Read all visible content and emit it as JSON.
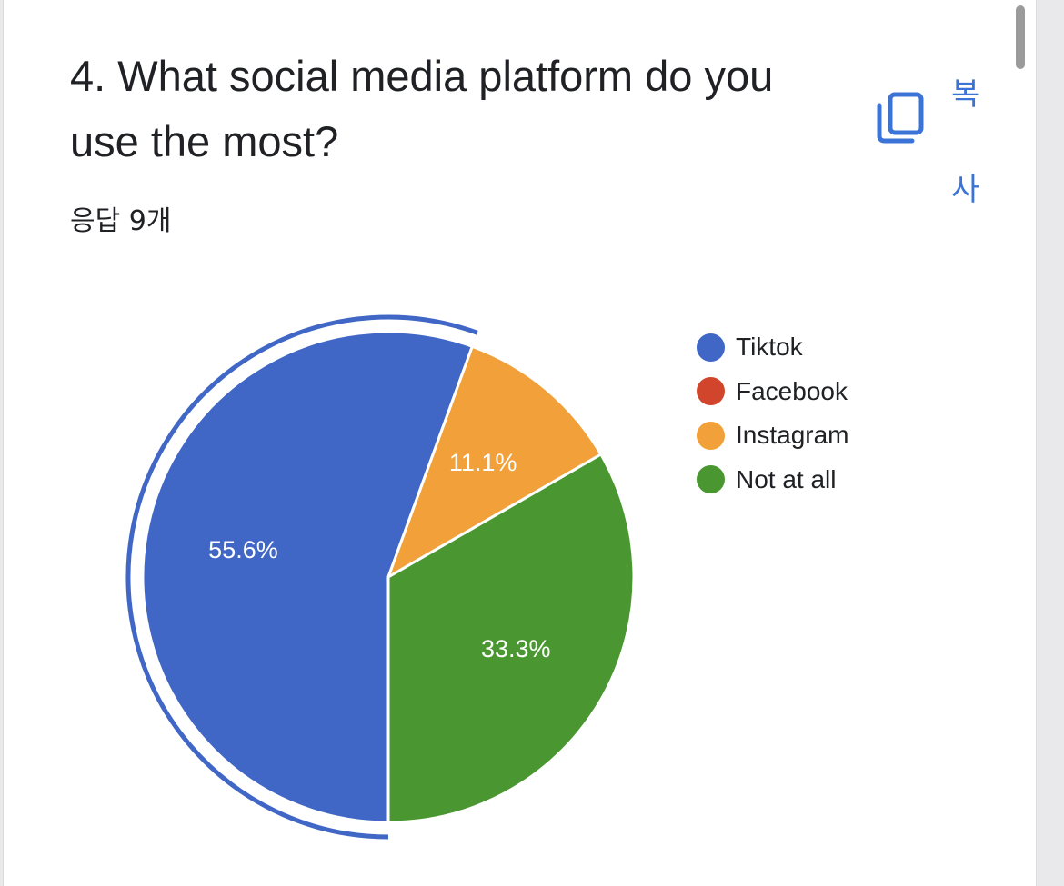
{
  "card": {
    "title": "4. What social media platform do you use the most?",
    "response_count": "응답 9개",
    "copy_button": {
      "label": "복사",
      "icon": "copy-icon"
    }
  },
  "chart_data": {
    "type": "pie",
    "categories": [
      "Tiktok",
      "Facebook",
      "Instagram",
      "Not at all"
    ],
    "values": [
      5,
      0,
      1,
      3
    ],
    "percent_labels": [
      "55.6%",
      "",
      "11.1%",
      "33.3%"
    ],
    "colors": [
      "#4066c6",
      "#d0452b",
      "#f1a03a",
      "#4a9732"
    ],
    "highlighted": "Tiktok",
    "start_angle_deg": 90,
    "direction": "clockwise",
    "legend_position": "right"
  },
  "theme": {
    "accent": "#3b74d6",
    "text": "#202124"
  }
}
